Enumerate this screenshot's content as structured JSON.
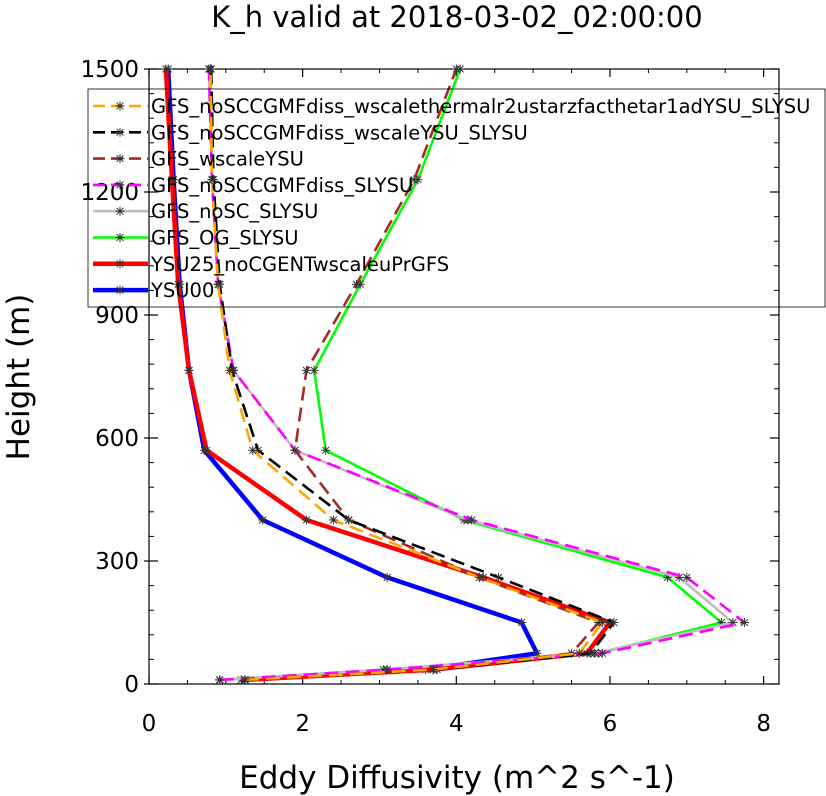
{
  "chart_data": {
    "type": "line",
    "title": "K_h valid at 2018-03-02_02:00:00",
    "xlabel": "Eddy Diffusivity (m^2 s^-1)",
    "ylabel": "Height (m)",
    "xlim": [
      0,
      8.2
    ],
    "ylim": [
      0,
      1500
    ],
    "xticks": [
      0,
      2,
      4,
      6,
      8
    ],
    "yticks": [
      0,
      300,
      600,
      900,
      1200,
      1500
    ],
    "xtick_labels": [
      "0",
      "2",
      "4",
      "6",
      "8"
    ],
    "ytick_labels": [
      "0",
      "300",
      "600",
      "900",
      "1200",
      "1500"
    ],
    "grid": false,
    "legend_position": "top-left",
    "series": [
      {
        "name": "GFS_noSCCGMFdiss_wscalethermalr2ustarzfacthetar1adYSU_SLYSU",
        "color": "#ffa500",
        "dash": "dashed",
        "marker": true,
        "x": [
          1.25,
          3.7,
          5.6,
          5.9,
          4.3,
          2.4,
          1.35,
          1.05,
          0.9,
          0.82,
          0.8
        ],
        "y": [
          10,
          35,
          75,
          150,
          260,
          400,
          570,
          765,
          975,
          1230,
          1500
        ]
      },
      {
        "name": "GFS_noSCCGMFdiss_wscaleYSU_SLYSU",
        "color": "#000000",
        "dash": "dashed",
        "marker": true,
        "x": [
          1.25,
          3.75,
          5.75,
          6.05,
          4.55,
          2.6,
          1.42,
          1.08,
          0.92,
          0.84,
          0.81
        ],
        "y": [
          10,
          35,
          75,
          150,
          260,
          400,
          570,
          765,
          975,
          1230,
          1500
        ]
      },
      {
        "name": "GFS_wscaleYSU",
        "color": "#a52a2a",
        "dash": "dashed",
        "marker": true,
        "x": [
          1.25,
          3.7,
          5.5,
          5.85,
          4.3,
          2.6,
          1.9,
          2.05,
          2.7,
          3.45,
          4.0
        ],
        "y": [
          10,
          35,
          75,
          150,
          260,
          400,
          570,
          765,
          975,
          1230,
          1500
        ]
      },
      {
        "name": "GFS_noSCCGMFdiss_SLYSU",
        "color": "#ff00ff",
        "dash": "dashed",
        "marker": true,
        "x": [
          0.92,
          3.1,
          5.9,
          7.75,
          7.0,
          4.2,
          1.9,
          1.1,
          0.9,
          0.82,
          0.78
        ],
        "y": [
          10,
          35,
          75,
          150,
          260,
          400,
          570,
          765,
          975,
          1230,
          1500
        ]
      },
      {
        "name": "GFS_noSC_SLYSU",
        "color": "#bebebe",
        "dash": "solid",
        "marker": true,
        "x": [
          0.92,
          3.05,
          5.8,
          7.6,
          6.9,
          4.15,
          1.9,
          1.1,
          0.9,
          0.82,
          0.78
        ],
        "y": [
          10,
          35,
          75,
          150,
          260,
          400,
          570,
          765,
          975,
          1230,
          1500
        ]
      },
      {
        "name": "GFS_OG_SLYSU",
        "color": "#00ff00",
        "dash": "solid",
        "marker": true,
        "x": [
          0.92,
          3.1,
          5.85,
          7.45,
          6.75,
          4.1,
          2.3,
          2.15,
          2.75,
          3.5,
          4.05
        ],
        "y": [
          10,
          35,
          75,
          150,
          260,
          400,
          570,
          765,
          975,
          1230,
          1500
        ]
      },
      {
        "name": "YSU25_noCGENTwscaleuPrGFS",
        "color": "#ff0000",
        "dash": "solid",
        "marker": true,
        "x": [
          1.25,
          3.7,
          5.7,
          6.0,
          4.35,
          2.05,
          0.75,
          0.52,
          0.38,
          0.3,
          0.22
        ],
        "y": [
          10,
          35,
          75,
          150,
          260,
          400,
          570,
          765,
          975,
          1230,
          1500
        ]
      },
      {
        "name": "YSU00",
        "color": "#0000ff",
        "dash": "solid",
        "marker": true,
        "x": [
          1.2,
          3.6,
          5.05,
          4.85,
          3.1,
          1.48,
          0.72,
          0.52,
          0.4,
          0.32,
          0.25
        ],
        "y": [
          10,
          35,
          75,
          150,
          260,
          400,
          570,
          765,
          975,
          1230,
          1500
        ]
      }
    ]
  }
}
